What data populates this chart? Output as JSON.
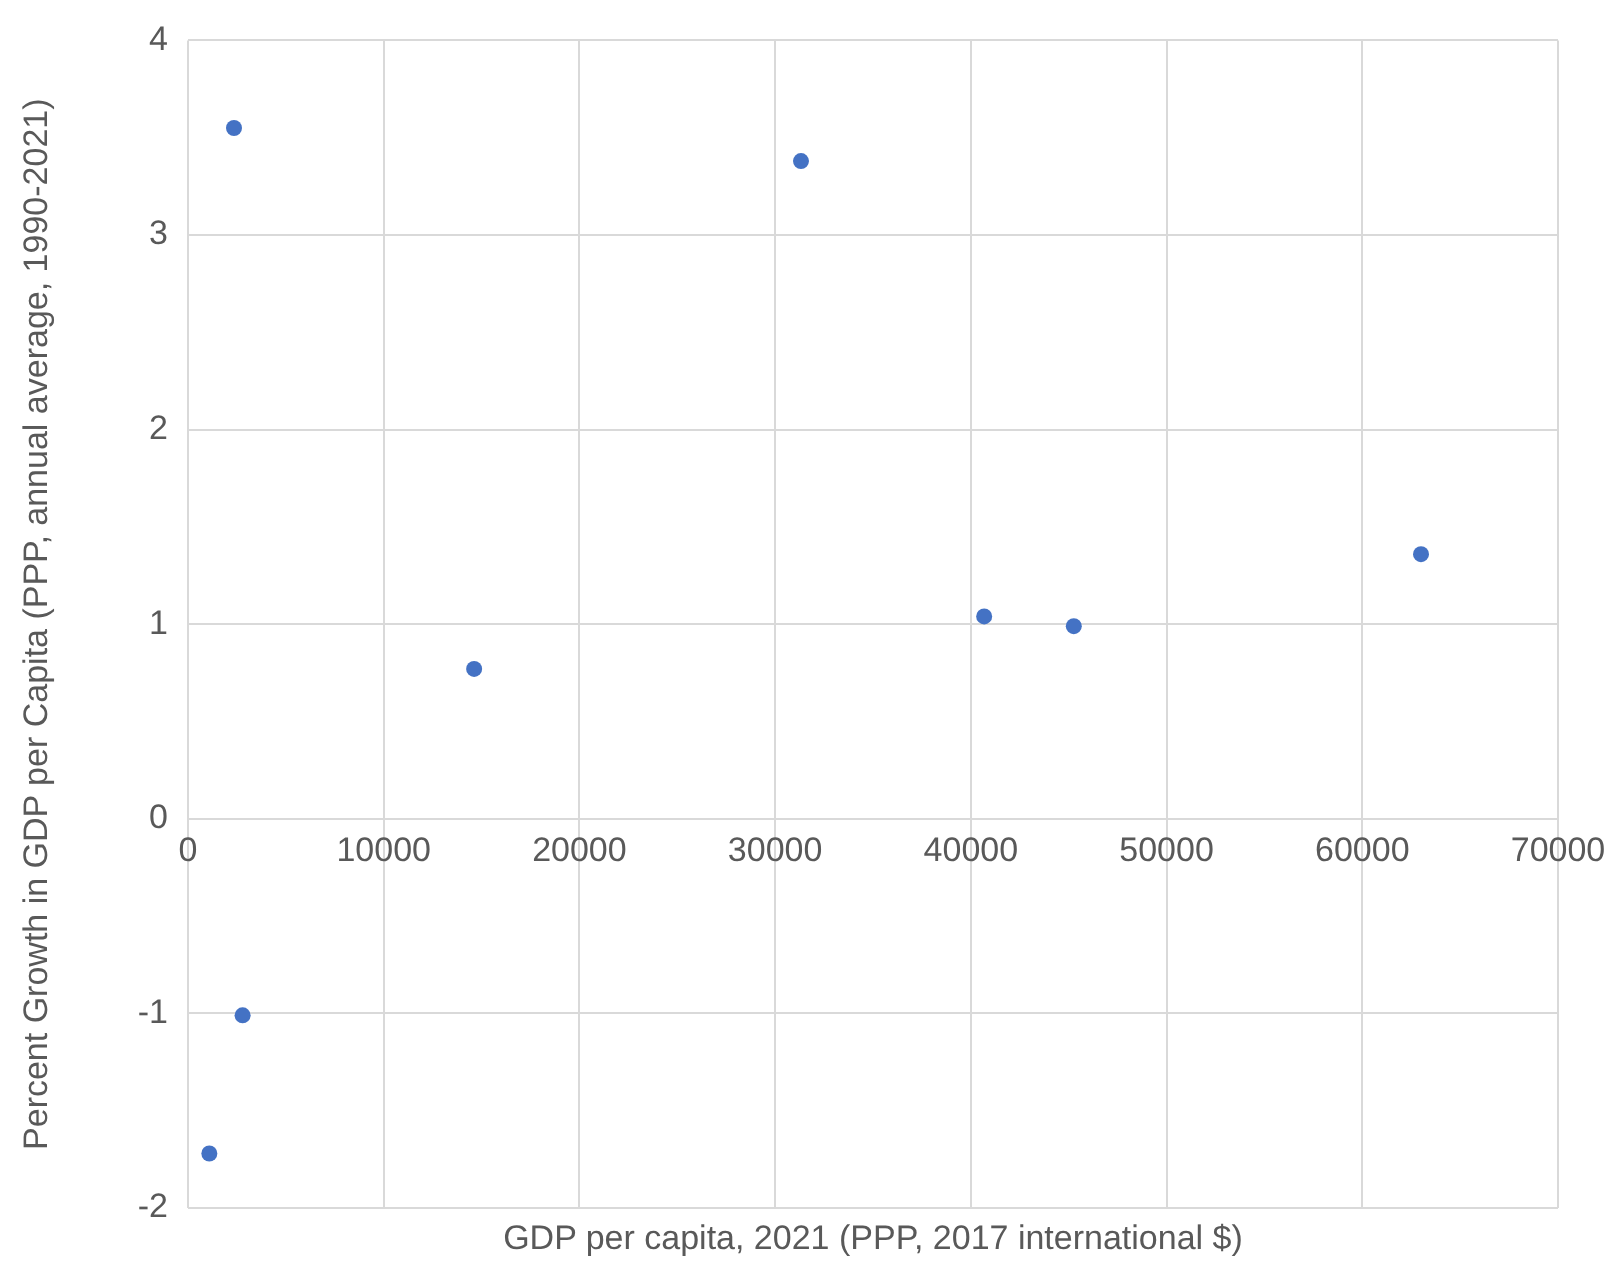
{
  "chart_data": {
    "type": "scatter",
    "xlabel": "GDP per capita, 2021 (PPP, 2017 international $)",
    "ylabel": "Percent Growth in GDP per Capita (PPP, annual average, 1990-2021)",
    "x": [
      2350,
      31320,
      14620,
      40680,
      45260,
      63000,
      2790,
      1090
    ],
    "series": [
      {
        "color": "#4472c4",
        "values": [
          3.55,
          3.38,
          0.77,
          1.04,
          0.99,
          1.36,
          -1.01,
          -1.72
        ]
      }
    ],
    "xlim": [
      0,
      70000
    ],
    "xticks": [
      0,
      10000,
      20000,
      30000,
      40000,
      50000,
      60000,
      70000
    ],
    "ylim": [
      -2,
      4
    ],
    "yticks": [
      -2,
      -1,
      0,
      1,
      2,
      3,
      4
    ],
    "grid": true,
    "marker": "circle"
  }
}
